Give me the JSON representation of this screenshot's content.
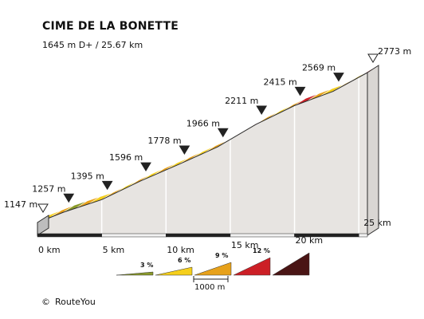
{
  "header": {
    "title": "CIME DE LA BONETTE",
    "subtitle": "1645 m D+ / 25.67 km"
  },
  "footer": {
    "copyright_symbol": "©",
    "credit": "RouteYou"
  },
  "chart_data": {
    "type": "area",
    "title": "CIME DE LA BONETTE",
    "subtitle": "1645 m D+ / 25.67 km",
    "x_unit": "km",
    "y_unit": "m",
    "xlim": [
      0,
      25.67
    ],
    "x_ticks": [
      0,
      5,
      10,
      15,
      20,
      25
    ],
    "x_tick_labels": [
      "0 km",
      "5 km",
      "10 km",
      "15 km",
      "20 km",
      "25 km"
    ],
    "points": [
      {
        "km": 0,
        "elev": 1147,
        "label": "1147 m",
        "marker": "start"
      },
      {
        "km": 2,
        "elev": 1257,
        "label": "1257 m",
        "marker": "km"
      },
      {
        "km": 5,
        "elev": 1395,
        "label": "1395 m",
        "marker": "km"
      },
      {
        "km": 8,
        "elev": 1596,
        "label": "1596 m",
        "marker": "km"
      },
      {
        "km": 11,
        "elev": 1778,
        "label": "1778 m",
        "marker": "km"
      },
      {
        "km": 14,
        "elev": 1966,
        "label": "1966 m",
        "marker": "km"
      },
      {
        "km": 17,
        "elev": 2211,
        "label": "2211 m",
        "marker": "km"
      },
      {
        "km": 20,
        "elev": 2415,
        "label": "2415 m",
        "marker": "km"
      },
      {
        "km": 23,
        "elev": 2569,
        "label": "2569 m",
        "marker": "km"
      },
      {
        "km": 25.67,
        "elev": 2773,
        "label": "2773 m",
        "marker": "end"
      }
    ],
    "segments": [
      {
        "from": 0,
        "to": 1,
        "class": 6
      },
      {
        "from": 1,
        "to": 2,
        "class": 6
      },
      {
        "from": 2,
        "to": 3,
        "class": 3
      },
      {
        "from": 3,
        "to": 4,
        "class": 6
      },
      {
        "from": 4,
        "to": 5,
        "class": 6
      },
      {
        "from": 5,
        "to": 6,
        "class": 6
      },
      {
        "from": 6,
        "to": 7,
        "class": 6
      },
      {
        "from": 7,
        "to": 8,
        "class": 6
      },
      {
        "from": 8,
        "to": 9,
        "class": 6
      },
      {
        "from": 9,
        "to": 10,
        "class": 6
      },
      {
        "from": 10,
        "to": 11,
        "class": 6
      },
      {
        "from": 11,
        "to": 12,
        "class": 6
      },
      {
        "from": 12,
        "to": 13,
        "class": 6
      },
      {
        "from": 13,
        "to": 14,
        "class": 6
      },
      {
        "from": 14,
        "to": 15,
        "class": 6
      },
      {
        "from": 15,
        "to": 16,
        "class": 6
      },
      {
        "from": 16,
        "to": 17,
        "class": 9
      },
      {
        "from": 17,
        "to": 18,
        "class": 6
      },
      {
        "from": 18,
        "to": 19,
        "class": 6
      },
      {
        "from": 19,
        "to": 20,
        "class": 6
      },
      {
        "from": 20,
        "to": 21,
        "class": 9
      },
      {
        "from": 21,
        "to": 22,
        "class": 6
      },
      {
        "from": 22,
        "to": 23,
        "class": 6
      },
      {
        "from": 23,
        "to": 24,
        "class": 6
      },
      {
        "from": 24,
        "to": 25,
        "class": 6
      },
      {
        "from": 25,
        "to": 25.67,
        "class": 9
      }
    ],
    "legend": {
      "items": [
        {
          "class": 3,
          "label": "3 %",
          "color": "#8a9a2a"
        },
        {
          "class": 6,
          "label": "6 %",
          "color": "#f5cf1b"
        },
        {
          "class": 9,
          "label": "9 %",
          "color": "#e7a11a"
        },
        {
          "class": 12,
          "label": "12 %",
          "color": "#cc1f26"
        },
        {
          "class": 15,
          "label": "",
          "color": "#4a1515"
        }
      ],
      "scale_label": "1000 m"
    },
    "colors": {
      "slope_3": "#8a9a2a",
      "slope_6_light": "#f5cf1b",
      "slope_6_dark": "#e7a11a",
      "slope_9": "#cc1f26",
      "slope_12": "#4a1515",
      "wall": "#e7e4e1",
      "edge": "#2b2b2b"
    }
  }
}
